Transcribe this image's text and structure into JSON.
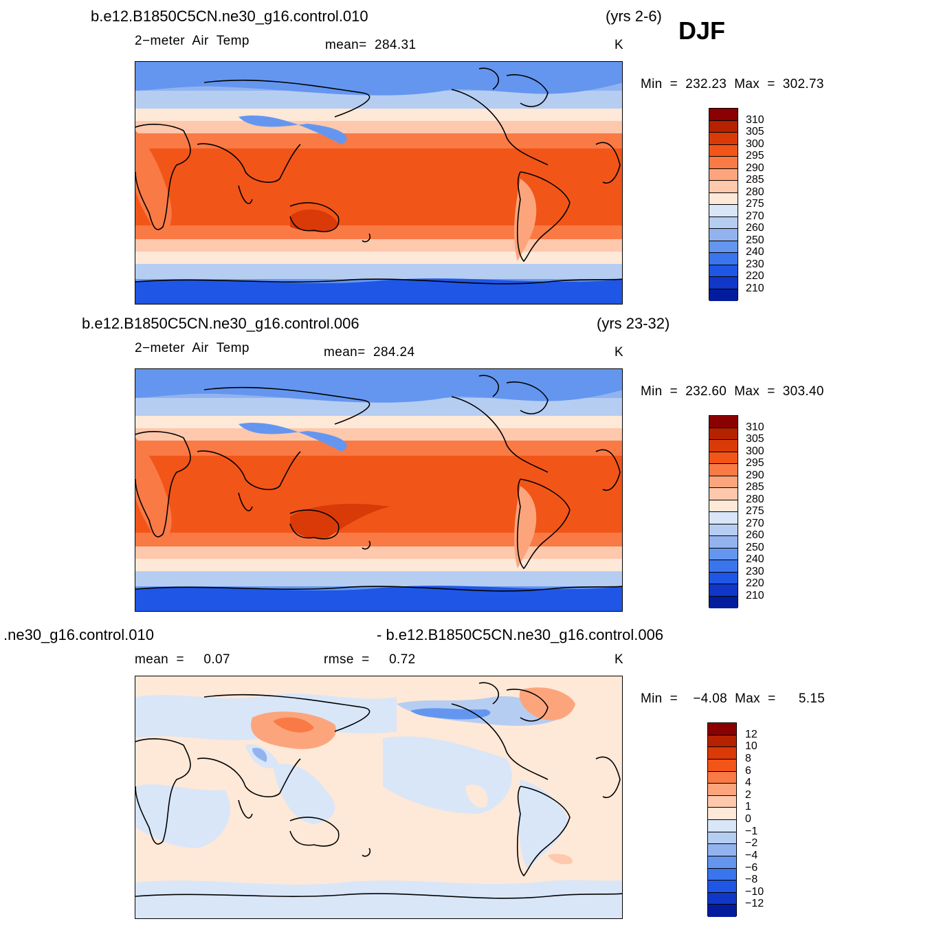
{
  "season": "DJF",
  "panels": [
    {
      "case": "b.e12.B1850C5CN.ne30_g16.control.010",
      "years": "(yrs 2-6)",
      "left": "2−meter  Air  Temp",
      "stat": "mean=  284.31",
      "units": "K",
      "minmax": "Min  =  232.23  Max  =  302.73"
    },
    {
      "case": "b.e12.B1850C5CN.ne30_g16.control.006",
      "years": "(yrs 23-32)",
      "left": "2−meter  Air  Temp",
      "stat": "mean=  284.24",
      "units": "K",
      "minmax": "Min  =  232.60  Max  =  303.40"
    },
    {
      "case_left": ".ne30_g16.control.010",
      "case_right": "- b.e12.B1850C5CN.ne30_g16.control.006",
      "left": "mean  =     0.07",
      "stat": "rmse  =     0.72",
      "units": "K",
      "minmax": "Min  =    −4.08  Max  =      5.15"
    }
  ],
  "colorbars": {
    "temp": {
      "labels": [
        "310",
        "305",
        "300",
        "295",
        "290",
        "285",
        "280",
        "275",
        "270",
        "260",
        "250",
        "240",
        "230",
        "220",
        "210"
      ],
      "colors": [
        "#8b0000",
        "#b52200",
        "#d93a08",
        "#f25518",
        "#f97a45",
        "#fca57c",
        "#fdc8ac",
        "#fee8d8",
        "#d8e6f8",
        "#b6cdf2",
        "#92b3ee",
        "#6496f0",
        "#3a75ee",
        "#1f56e6",
        "#1037c8",
        "#031c9e"
      ]
    },
    "diff": {
      "labels": [
        "12",
        "10",
        "8",
        "6",
        "4",
        "2",
        "1",
        "0",
        "−1",
        "−2",
        "−4",
        "−6",
        "−8",
        "−10",
        "−12"
      ],
      "colors": [
        "#8b0000",
        "#b52200",
        "#d93a08",
        "#f25518",
        "#f97a45",
        "#fca57c",
        "#fdc8ac",
        "#fee8d8",
        "#d8e6f8",
        "#b6cdf2",
        "#92b3ee",
        "#6496f0",
        "#3a75ee",
        "#1f56e6",
        "#1037c8",
        "#031c9e"
      ]
    }
  }
}
